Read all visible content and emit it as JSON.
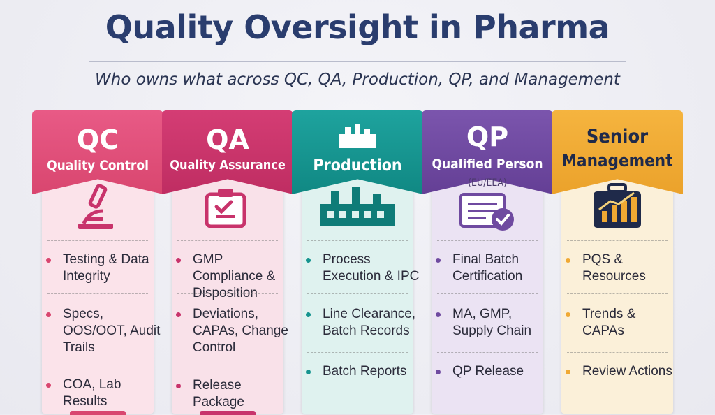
{
  "header": {
    "title": "Quality Oversight in Pharma",
    "subtitle": "Who owns what across QC, QA, Production, QP, and Management"
  },
  "columns": [
    {
      "abbr": "QC",
      "name": "Quality Control",
      "icon": "microscope-icon",
      "color": "#e2527e",
      "items": [
        "Testing & Data Integrity",
        "Specs, OOS/OOT, Audit Trails",
        "COA, Lab Results"
      ]
    },
    {
      "abbr": "QA",
      "name": "Quality Assurance",
      "icon": "clipboard-check-icon",
      "color": "#c8336b",
      "items": [
        "GMP Compliance & Disposition",
        "Deviations, CAPAs, Change Control",
        "Release Package"
      ]
    },
    {
      "name": "Production",
      "icon": "factory-icon",
      "color": "#16948f",
      "items": [
        "Process Execution & IPC",
        "Line Clearance, Batch Records",
        "Batch Reports"
      ]
    },
    {
      "abbr": "QP",
      "name": "Qualified Person",
      "note": "(EU/EEA)",
      "icon": "certificate-check-icon",
      "color": "#6f4aa0",
      "items": [
        "Final Batch Certification",
        "MA, GMP, Supply Chain",
        "QP Release"
      ]
    },
    {
      "name_line1": "Senior",
      "name_line2": "Management",
      "icon": "briefcase-chart-icon",
      "color": "#f0a933",
      "items": [
        "PQS & Resources",
        "Trends & CAPAs",
        "Review Actions"
      ]
    }
  ]
}
